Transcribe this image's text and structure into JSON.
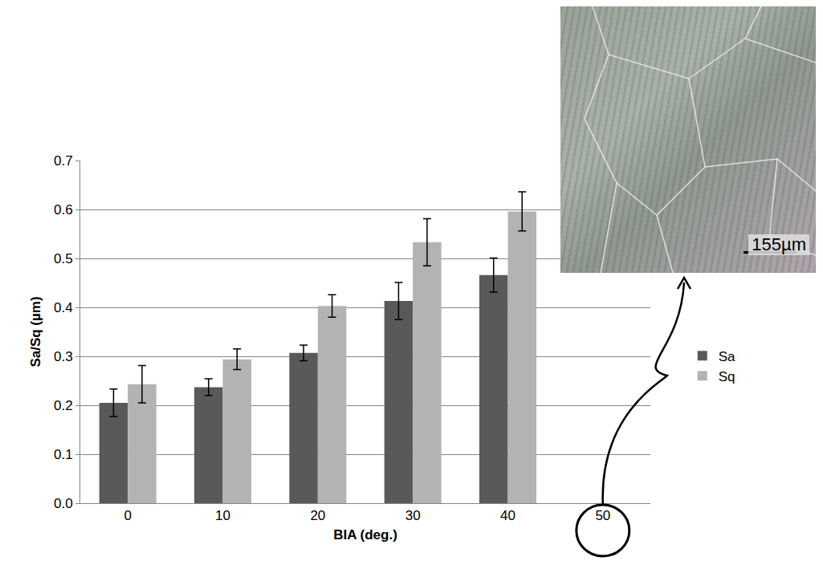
{
  "chart_data": {
    "type": "bar",
    "x_label": "BIA (deg.)",
    "y_label": "Sa/Sq (µm)",
    "categories": [
      "0",
      "10",
      "20",
      "30",
      "40",
      "50"
    ],
    "series": [
      {
        "name": "Sa",
        "color": "#595959",
        "values": [
          0.205,
          0.237,
          0.307,
          0.413,
          0.466,
          null
        ],
        "errors": [
          0.028,
          0.017,
          0.016,
          0.038,
          0.035,
          null
        ]
      },
      {
        "name": "Sq",
        "color": "#b3b3b3",
        "values": [
          0.243,
          0.294,
          0.403,
          0.533,
          0.596,
          null
        ],
        "errors": [
          0.038,
          0.021,
          0.023,
          0.048,
          0.04,
          null
        ]
      }
    ],
    "ylim": [
      0,
      0.7
    ],
    "yticks": [
      {
        "value": 0,
        "label": "0.0"
      },
      0.1,
      0.2,
      0.3,
      0.4,
      0.5,
      0.6,
      0.7
    ],
    "grid": true,
    "legend": "right",
    "annotations": [
      {
        "text": "155µm"
      }
    ]
  }
}
